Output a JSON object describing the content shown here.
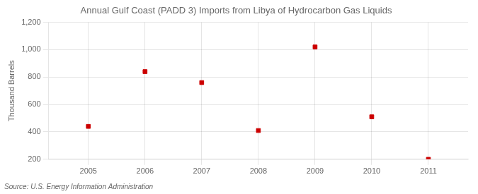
{
  "chart_data": {
    "type": "scatter",
    "title": "Annual Gulf Coast (PADD 3) Imports from Libya of Hydrocarbon Gas Liquids",
    "ylabel": "Thousand Barrels",
    "annotation": "Source: U.S. Energy Information Administration",
    "x": [
      2005,
      2006,
      2007,
      2008,
      2009,
      2010,
      2011
    ],
    "values": [
      440,
      840,
      760,
      410,
      1020,
      510,
      200
    ],
    "xlim": [
      2004.3,
      2011.7
    ],
    "xticks": [
      2005,
      2006,
      2007,
      2008,
      2009,
      2010,
      2011
    ],
    "ylim": [
      200,
      1200
    ],
    "yticks": [
      200,
      400,
      600,
      800,
      {
        "value": 1000,
        "label": "1,000"
      },
      {
        "value": 1200,
        "label": "1,200"
      }
    ],
    "color": "#cc0000",
    "marker": "square",
    "grid": true
  }
}
